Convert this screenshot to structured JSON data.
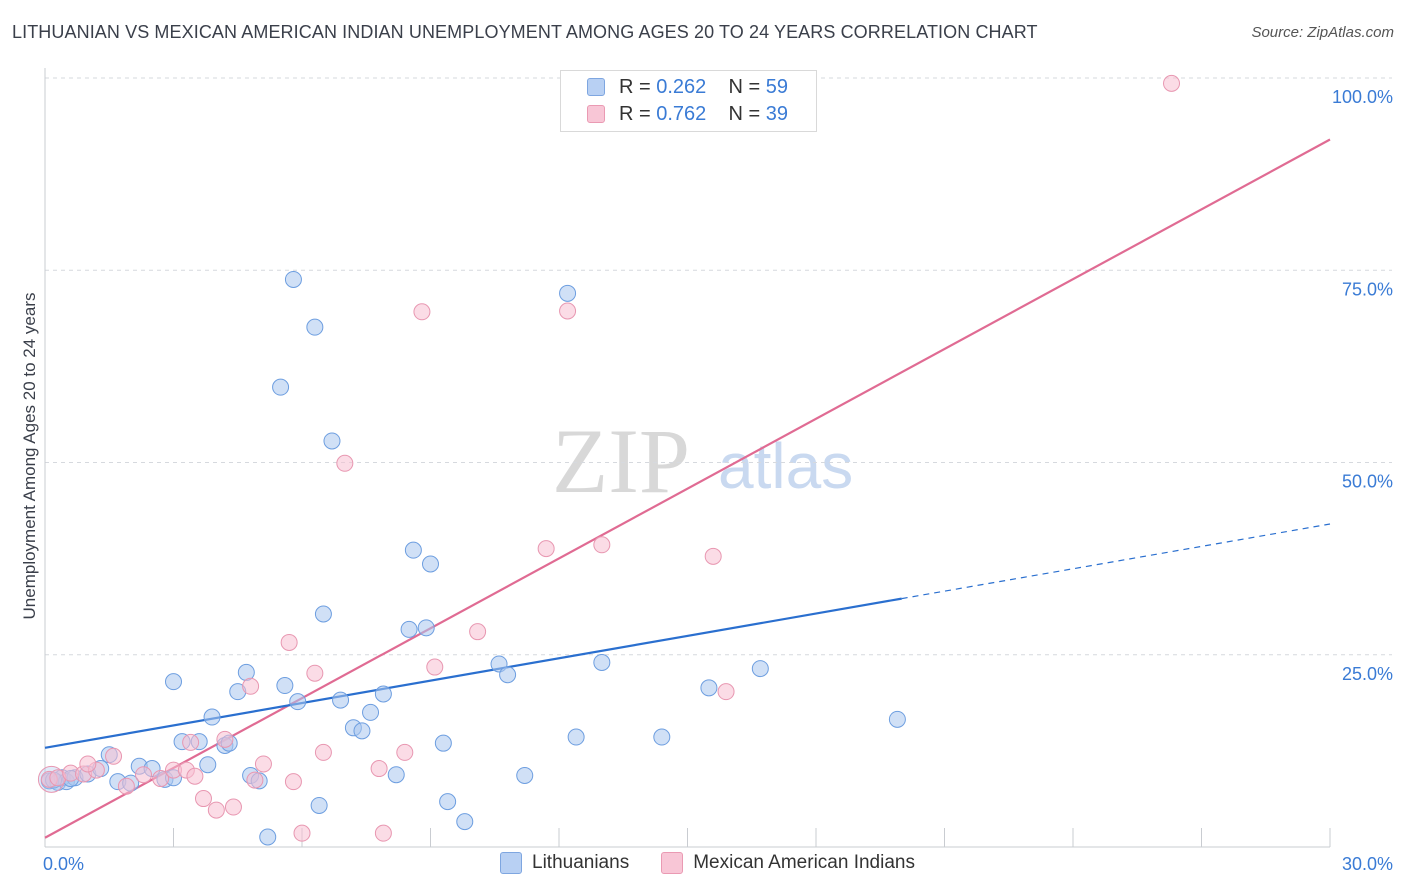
{
  "header": {
    "title": "LITHUANIAN VS MEXICAN AMERICAN INDIAN UNEMPLOYMENT AMONG AGES 20 TO 24 YEARS CORRELATION CHART",
    "source": "Source: ZipAtlas.com"
  },
  "watermark": {
    "zip": "ZIP",
    "atlas": "atlas"
  },
  "legend": {
    "rows": [
      {
        "r_label": "R =",
        "r_value": "0.262",
        "n_label": "N =",
        "n_value": "59"
      },
      {
        "r_label": "R =",
        "r_value": "0.762",
        "n_label": "N =",
        "n_value": "39"
      }
    ]
  },
  "bottom_legend": {
    "series1": "Lithuanians",
    "series2": "Mexican American Indians"
  },
  "colors": {
    "blue_fill": "#a9c6ef",
    "blue_stroke": "#6d9ee0",
    "blue_line": "#2a6fcf",
    "pink_fill": "#f7bfd1",
    "pink_stroke": "#e897b1",
    "pink_line": "#e06b93",
    "grid": "#d6d9de",
    "tick_text": "#3a7bd5"
  },
  "chart_data": {
    "type": "scatter",
    "title": "LITHUANIAN VS MEXICAN AMERICAN INDIAN UNEMPLOYMENT AMONG AGES 20 TO 24 YEARS CORRELATION CHART",
    "ylabel": "Unemployment Among Ages 20 to 24 years",
    "xlabel": "",
    "xlim": [
      0,
      30
    ],
    "ylim": [
      0,
      100
    ],
    "x_tick_labels": [
      "0.0%",
      "30.0%"
    ],
    "y_ticks": [
      25,
      50,
      75,
      100
    ],
    "y_tick_labels": [
      "25.0%",
      "50.0%",
      "75.0%",
      "100.0%"
    ],
    "grid": "horizontal dashed",
    "legend": "top-center",
    "series": [
      {
        "name": "Lithuanians",
        "r": 0.262,
        "n": 59,
        "trend": {
          "x": [
            0,
            20
          ],
          "y": [
            12.9,
            32.3
          ]
        },
        "trend_dashed": {
          "x": [
            20,
            30
          ],
          "y": [
            32.3,
            42.0
          ]
        },
        "points": [
          [
            0.1,
            8.6
          ],
          [
            0.3,
            8.4
          ],
          [
            0.4,
            9.0
          ],
          [
            0.5,
            8.5
          ],
          [
            0.7,
            9.0
          ],
          [
            1.0,
            9.5
          ],
          [
            1.3,
            10.2
          ],
          [
            1.5,
            12.0
          ],
          [
            1.7,
            8.5
          ],
          [
            2.0,
            8.3
          ],
          [
            2.2,
            10.5
          ],
          [
            2.5,
            10.2
          ],
          [
            2.8,
            8.8
          ],
          [
            3.0,
            9.0
          ],
          [
            3.0,
            21.5
          ],
          [
            3.2,
            13.7
          ],
          [
            3.6,
            13.7
          ],
          [
            3.8,
            10.7
          ],
          [
            3.9,
            16.9
          ],
          [
            4.2,
            13.2
          ],
          [
            4.3,
            13.5
          ],
          [
            4.5,
            20.2
          ],
          [
            4.7,
            22.7
          ],
          [
            4.8,
            9.3
          ],
          [
            5.0,
            8.6
          ],
          [
            5.2,
            1.3
          ],
          [
            5.5,
            59.8
          ],
          [
            5.6,
            21.0
          ],
          [
            5.8,
            73.8
          ],
          [
            5.9,
            18.9
          ],
          [
            6.3,
            67.6
          ],
          [
            6.4,
            5.4
          ],
          [
            6.5,
            30.3
          ],
          [
            6.7,
            52.8
          ],
          [
            6.9,
            19.1
          ],
          [
            7.2,
            15.5
          ],
          [
            7.4,
            15.1
          ],
          [
            7.6,
            17.5
          ],
          [
            7.9,
            19.9
          ],
          [
            8.2,
            9.4
          ],
          [
            8.5,
            28.3
          ],
          [
            8.6,
            38.6
          ],
          [
            8.9,
            28.5
          ],
          [
            9.0,
            36.8
          ],
          [
            9.3,
            13.5
          ],
          [
            9.4,
            5.9
          ],
          [
            9.8,
            3.3
          ],
          [
            10.6,
            23.8
          ],
          [
            10.8,
            22.4
          ],
          [
            11.2,
            9.3
          ],
          [
            12.2,
            72.0
          ],
          [
            12.4,
            14.3
          ],
          [
            13.0,
            24.0
          ],
          [
            14.4,
            14.3
          ],
          [
            15.5,
            20.7
          ],
          [
            16.7,
            23.2
          ],
          [
            19.9,
            16.6
          ],
          [
            0.2,
            8.7
          ],
          [
            0.6,
            8.9
          ]
        ]
      },
      {
        "name": "Mexican American Indians",
        "r": 0.762,
        "n": 39,
        "trend": {
          "x": [
            0,
            30
          ],
          "y": [
            1.2,
            92.0
          ]
        },
        "points": [
          [
            0.1,
            8.8
          ],
          [
            0.3,
            9.0
          ],
          [
            0.6,
            9.6
          ],
          [
            0.9,
            9.5
          ],
          [
            1.2,
            10.0
          ],
          [
            1.6,
            11.8
          ],
          [
            1.9,
            7.9
          ],
          [
            2.3,
            9.4
          ],
          [
            2.7,
            8.9
          ],
          [
            3.0,
            10.0
          ],
          [
            3.3,
            10.0
          ],
          [
            3.5,
            9.2
          ],
          [
            3.7,
            6.3
          ],
          [
            4.0,
            4.8
          ],
          [
            4.2,
            14.0
          ],
          [
            4.4,
            5.2
          ],
          [
            4.8,
            20.9
          ],
          [
            4.9,
            8.7
          ],
          [
            5.1,
            10.8
          ],
          [
            5.7,
            26.6
          ],
          [
            5.8,
            8.5
          ],
          [
            6.0,
            1.8
          ],
          [
            6.3,
            22.6
          ],
          [
            6.5,
            12.3
          ],
          [
            7.0,
            49.9
          ],
          [
            7.8,
            10.2
          ],
          [
            7.9,
            1.8
          ],
          [
            8.4,
            12.3
          ],
          [
            8.8,
            69.6
          ],
          [
            9.1,
            23.4
          ],
          [
            10.1,
            28.0
          ],
          [
            11.7,
            38.8
          ],
          [
            12.2,
            69.7
          ],
          [
            13.0,
            39.3
          ],
          [
            15.6,
            37.8
          ],
          [
            15.9,
            20.2
          ],
          [
            26.3,
            99.3
          ],
          [
            1.0,
            10.8
          ],
          [
            3.4,
            13.6
          ]
        ]
      }
    ]
  }
}
